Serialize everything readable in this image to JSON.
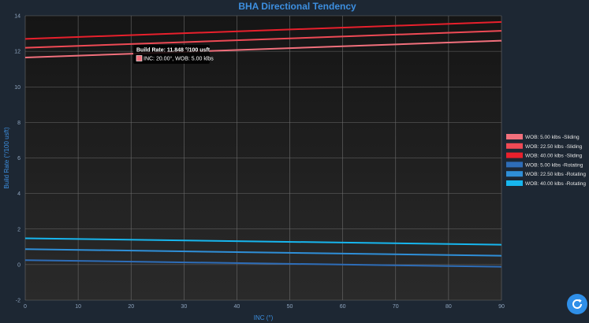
{
  "chart_data": {
    "type": "line",
    "title": "BHA Directional Tendency",
    "xlabel": "INC (°)",
    "ylabel": "Build Rate (°/100 usft)",
    "xlim": [
      0,
      90
    ],
    "ylim": [
      -2,
      14
    ],
    "x_ticks": [
      0,
      10,
      20,
      30,
      40,
      50,
      60,
      70,
      80,
      90
    ],
    "y_ticks": [
      -2,
      0,
      2,
      4,
      6,
      8,
      10,
      12,
      14
    ],
    "grid": true,
    "legend_position": "right",
    "x": [
      0,
      90
    ],
    "series": [
      {
        "name": "WOB: 5.00 klbs -Sliding",
        "color": "#f2707c",
        "values": [
          11.65,
          12.6
        ]
      },
      {
        "name": "WOB: 22.50 klbs -Sliding",
        "color": "#ef4a55",
        "values": [
          12.2,
          13.15
        ]
      },
      {
        "name": "WOB: 40.00 klbs -Sliding",
        "color": "#e8202c",
        "values": [
          12.7,
          13.65
        ]
      },
      {
        "name": "WOB: 5.00 klbs -Rotating",
        "color": "#2e6db8",
        "values": [
          0.25,
          -0.12
        ]
      },
      {
        "name": "WOB: 22.50 klbs -Rotating",
        "color": "#2f8fd8",
        "values": [
          0.87,
          0.5
        ]
      },
      {
        "name": "WOB: 40.00 klbs -Rotating",
        "color": "#17b6ee",
        "values": [
          1.48,
          1.12
        ]
      }
    ],
    "tooltip": {
      "title": "Build Rate: 11.848 °/100 usft",
      "body": "INC: 20.00°, WOB: 5.00 klbs",
      "color": "#f2707c"
    }
  },
  "controls": {
    "refresh_icon": "refresh-icon"
  }
}
